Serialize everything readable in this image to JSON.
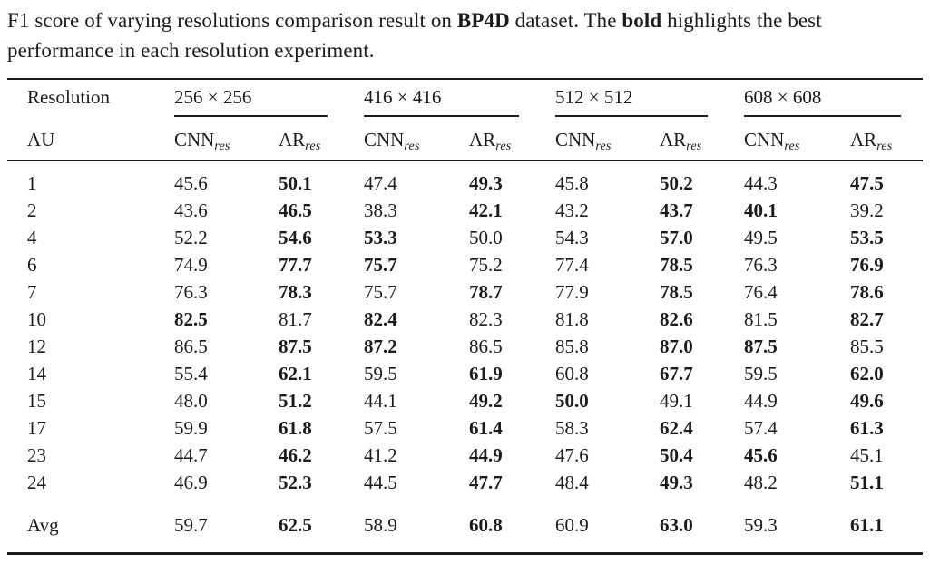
{
  "caption": {
    "prefix": "F1 score of varying resolutions comparison result on ",
    "bold1": "BP4D",
    "mid": " dataset. The ",
    "bold2": "bold",
    "suffix": " highlights the best performance in each resolution experiment."
  },
  "table": {
    "corner_label": "Resolution",
    "au_label": "AU",
    "groups": [
      {
        "label": "256 × 256"
      },
      {
        "label": "416 × 416"
      },
      {
        "label": "512 × 512"
      },
      {
        "label": "608 × 608"
      }
    ],
    "col_bases": [
      "CNN",
      "AR"
    ],
    "subscript": "res",
    "rows": [
      {
        "au": "1",
        "values": [
          "45.6",
          "50.1",
          "47.4",
          "49.3",
          "45.8",
          "50.2",
          "44.3",
          "47.5"
        ],
        "bold": [
          0,
          1,
          0,
          1,
          0,
          1,
          0,
          1
        ]
      },
      {
        "au": "2",
        "values": [
          "43.6",
          "46.5",
          "38.3",
          "42.1",
          "43.2",
          "43.7",
          "40.1",
          "39.2"
        ],
        "bold": [
          0,
          1,
          0,
          1,
          0,
          1,
          1,
          0
        ]
      },
      {
        "au": "4",
        "values": [
          "52.2",
          "54.6",
          "53.3",
          "50.0",
          "54.3",
          "57.0",
          "49.5",
          "53.5"
        ],
        "bold": [
          0,
          1,
          1,
          0,
          0,
          1,
          0,
          1
        ]
      },
      {
        "au": "6",
        "values": [
          "74.9",
          "77.7",
          "75.7",
          "75.2",
          "77.4",
          "78.5",
          "76.3",
          "76.9"
        ],
        "bold": [
          0,
          1,
          1,
          0,
          0,
          1,
          0,
          1
        ]
      },
      {
        "au": "7",
        "values": [
          "76.3",
          "78.3",
          "75.7",
          "78.7",
          "77.9",
          "78.5",
          "76.4",
          "78.6"
        ],
        "bold": [
          0,
          1,
          0,
          1,
          0,
          1,
          0,
          1
        ]
      },
      {
        "au": "10",
        "values": [
          "82.5",
          "81.7",
          "82.4",
          "82.3",
          "81.8",
          "82.6",
          "81.5",
          "82.7"
        ],
        "bold": [
          1,
          0,
          1,
          0,
          0,
          1,
          0,
          1
        ]
      },
      {
        "au": "12",
        "values": [
          "86.5",
          "87.5",
          "87.2",
          "86.5",
          "85.8",
          "87.0",
          "87.5",
          "85.5"
        ],
        "bold": [
          0,
          1,
          1,
          0,
          0,
          1,
          1,
          0
        ]
      },
      {
        "au": "14",
        "values": [
          "55.4",
          "62.1",
          "59.5",
          "61.9",
          "60.8",
          "67.7",
          "59.5",
          "62.0"
        ],
        "bold": [
          0,
          1,
          0,
          1,
          0,
          1,
          0,
          1
        ]
      },
      {
        "au": "15",
        "values": [
          "48.0",
          "51.2",
          "44.1",
          "49.2",
          "50.0",
          "49.1",
          "44.9",
          "49.6"
        ],
        "bold": [
          0,
          1,
          0,
          1,
          1,
          0,
          0,
          1
        ]
      },
      {
        "au": "17",
        "values": [
          "59.9",
          "61.8",
          "57.5",
          "61.4",
          "58.3",
          "62.4",
          "57.4",
          "61.3"
        ],
        "bold": [
          0,
          1,
          0,
          1,
          0,
          1,
          0,
          1
        ]
      },
      {
        "au": "23",
        "values": [
          "44.7",
          "46.2",
          "41.2",
          "44.9",
          "47.6",
          "50.4",
          "45.6",
          "45.1"
        ],
        "bold": [
          0,
          1,
          0,
          1,
          0,
          1,
          1,
          0
        ]
      },
      {
        "au": "24",
        "values": [
          "46.9",
          "52.3",
          "44.5",
          "47.7",
          "48.4",
          "49.3",
          "48.2",
          "51.1"
        ],
        "bold": [
          0,
          1,
          0,
          1,
          0,
          1,
          0,
          1
        ]
      }
    ],
    "avg_row": {
      "au": "Avg",
      "values": [
        "59.7",
        "62.5",
        "58.9",
        "60.8",
        "60.9",
        "63.0",
        "59.3",
        "61.1"
      ],
      "bold": [
        0,
        1,
        0,
        1,
        0,
        1,
        0,
        1
      ]
    }
  }
}
